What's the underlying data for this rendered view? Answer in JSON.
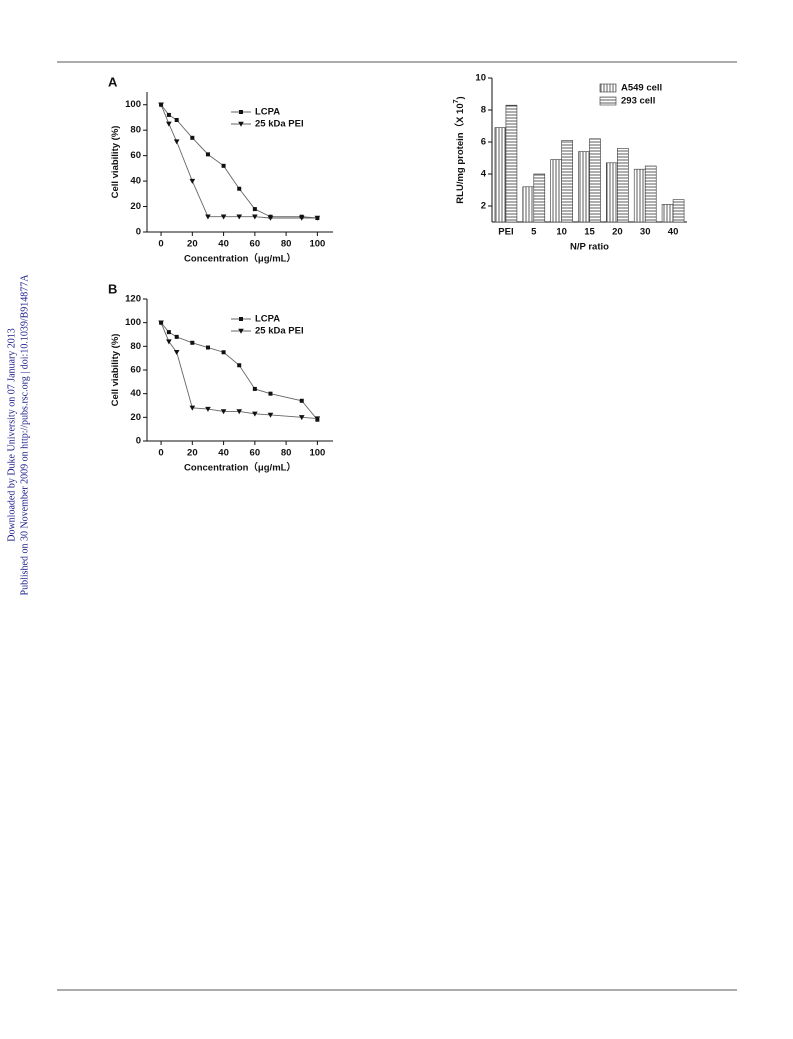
{
  "side_text": [
    "Downloaded by Duke University on 07 January 2013",
    "Published on 30 November 2009 on http://pubs.rsc.org | doi:10.1039/B914877A"
  ],
  "chart_data": [
    {
      "type": "line",
      "title": "A",
      "xlabel": "Concentration（μg/mL）",
      "ylabel": "Cell viability (%)",
      "x": [
        0,
        5,
        10,
        20,
        30,
        40,
        50,
        60,
        70,
        90,
        100
      ],
      "series": [
        {
          "name": "LCPA",
          "color": "#111111",
          "marker": "square",
          "values": [
            100,
            92,
            88,
            74,
            61,
            52,
            34,
            18,
            12,
            12,
            11
          ]
        },
        {
          "name": "25 kDa PEI",
          "color": "#111111",
          "marker": "triangle-down",
          "values": [
            100,
            85,
            71,
            40,
            12,
            12,
            12,
            12,
            11,
            11,
            11
          ]
        }
      ],
      "xlim": [
        -9,
        110
      ],
      "ylim": [
        0,
        110
      ],
      "xticks": [
        0,
        20,
        40,
        60,
        80,
        100
      ],
      "yticks": [
        0,
        20,
        40,
        60,
        80,
        100
      ]
    },
    {
      "type": "line",
      "title": "B",
      "xlabel": "Concentration（μg/mL）",
      "ylabel": "Cell viability (%)",
      "x": [
        0,
        5,
        10,
        20,
        30,
        40,
        50,
        60,
        70,
        90,
        100
      ],
      "series": [
        {
          "name": "LCPA",
          "color": "#111111",
          "marker": "square",
          "values": [
            100,
            92,
            88,
            83,
            79,
            75,
            64,
            44,
            40,
            34,
            18
          ]
        },
        {
          "name": "25 kDa PEI",
          "color": "#111111",
          "marker": "triangle-down",
          "values": [
            100,
            84,
            75,
            28,
            27,
            25,
            25,
            23,
            22,
            20,
            19
          ]
        }
      ],
      "xlim": [
        -9,
        110
      ],
      "ylim": [
        0,
        120
      ],
      "xticks": [
        0,
        20,
        40,
        60,
        80,
        100
      ],
      "yticks": [
        0,
        20,
        40,
        60,
        80,
        100,
        120
      ]
    },
    {
      "type": "bar",
      "xlabel": "N/P ratio",
      "ylabel": "RLU/mg protein（X 10",
      "ylabel_exp": "7",
      "ylabel_end": ")",
      "categories": [
        "PEI",
        "5",
        "10",
        "15",
        "20",
        "30",
        "40"
      ],
      "series": [
        {
          "name": "A549 cell",
          "color": "#333333",
          "hatch": "vertical",
          "values": [
            6.9,
            3.2,
            4.9,
            5.4,
            4.7,
            4.3,
            2.1
          ]
        },
        {
          "name": "293 cell",
          "color": "#333333",
          "hatch": "horizontal",
          "values": [
            8.3,
            4.0,
            6.1,
            6.2,
            5.6,
            4.5,
            2.4
          ]
        }
      ],
      "ylim": [
        1,
        10
      ],
      "yticks": [
        2,
        4,
        6,
        8,
        10
      ]
    }
  ]
}
